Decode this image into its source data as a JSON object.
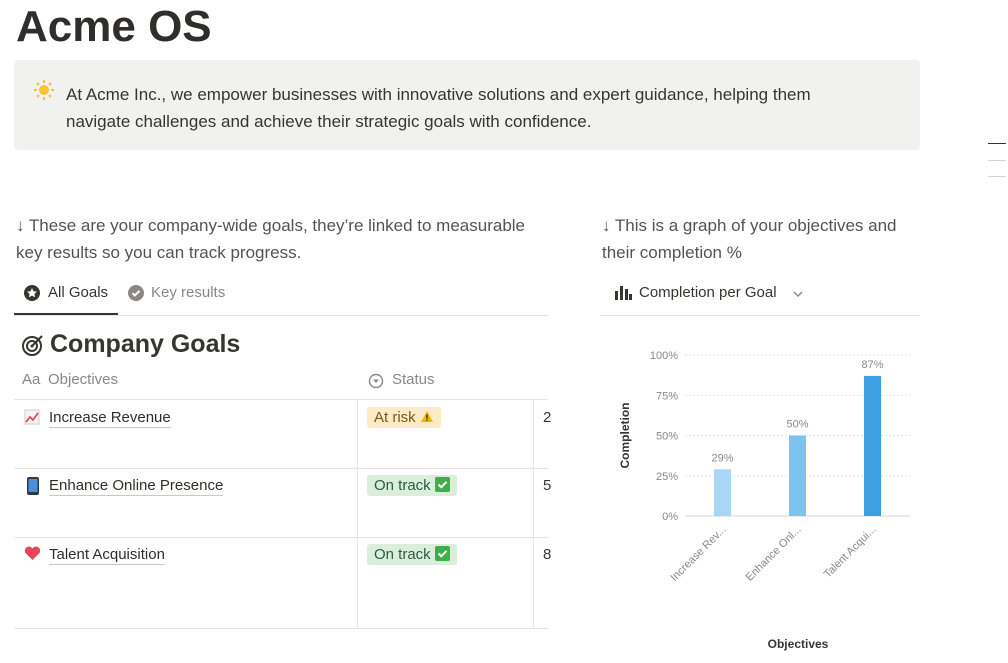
{
  "page": {
    "title": "Acme OS",
    "callout": "At Acme Inc., we empower businesses with innovative solutions and expert guidance, helping them navigate challenges and achieve their strategic goals with confidence."
  },
  "goals_section": {
    "intro": "↓ These are your company-wide goals, they’re linked to measurable key results so you can track progress.",
    "tabs": [
      "All Goals",
      "Key results"
    ],
    "database_title": "Company Goals",
    "columns": [
      {
        "icon": "Aa",
        "label": "Objectives"
      },
      {
        "label": "Status"
      }
    ],
    "rows": [
      {
        "name": "Increase Revenue",
        "status": "At risk",
        "extra": "2"
      },
      {
        "name": "Enhance Online Presence",
        "status": "On track",
        "extra": "5"
      },
      {
        "name": "Talent Acquisition",
        "status": "On track",
        "extra": "8"
      }
    ]
  },
  "chart_section": {
    "intro": "↓ This is a graph of your objectives and their completion %",
    "view": "Completion per Goal"
  },
  "chart_data": {
    "type": "bar",
    "categories": [
      "Increase Rev...",
      "Enhance Onl...",
      "Talent Acqui..."
    ],
    "values": [
      29,
      50,
      87
    ],
    "value_labels": [
      "29%",
      "50%",
      "87%"
    ],
    "colors": [
      "#a9d5f7",
      "#7cc4ef",
      "#3ea0e4"
    ],
    "ylim": [
      0,
      100
    ],
    "yticks": [
      {
        "value": 0,
        "label": "0%"
      },
      {
        "value": 25,
        "label": "25%"
      },
      {
        "value": 50,
        "label": "50%"
      },
      {
        "value": 75,
        "label": "75%"
      },
      {
        "value": 100,
        "label": "100%"
      }
    ],
    "y_label": "Completion",
    "x_label": "Objectives",
    "grid": true
  }
}
